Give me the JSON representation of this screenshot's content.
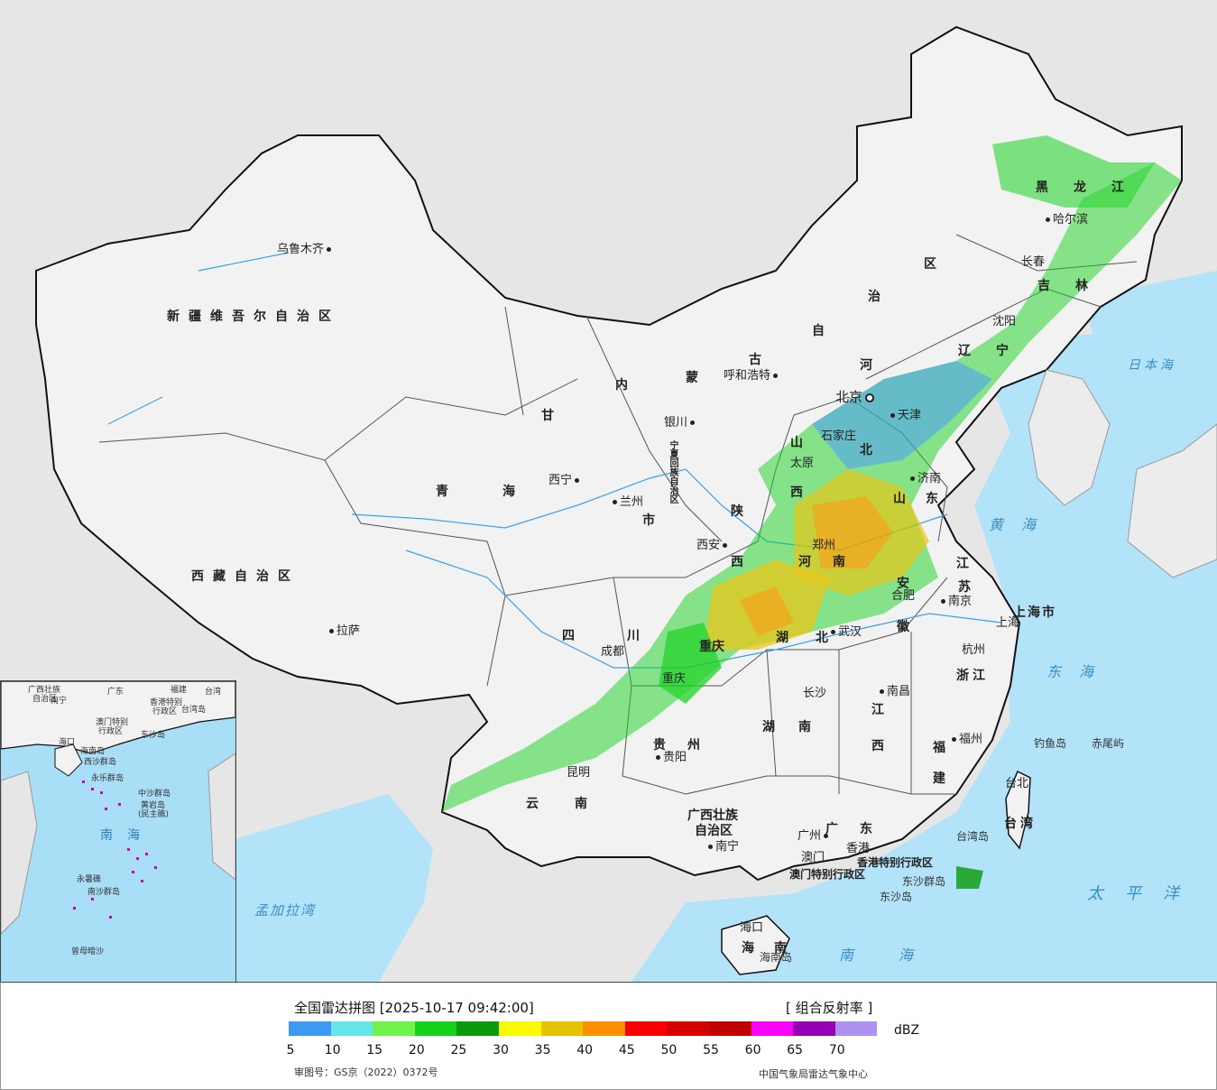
{
  "legend": {
    "title": "全国雷达拼图 [2025-10-17 09:42:00]",
    "product": "[ 组合反射率 ]",
    "unit": "dBZ",
    "colors": [
      "#3d9af2",
      "#62e6e9",
      "#70f44a",
      "#16d11d",
      "#0b9a0b",
      "#fbfb00",
      "#e6c300",
      "#fb9100",
      "#f70000",
      "#d50000",
      "#c10000",
      "#fb00fb",
      "#9600b4",
      "#ad90f0"
    ],
    "ticks": [
      "5",
      "10",
      "15",
      "20",
      "25",
      "30",
      "35",
      "40",
      "45",
      "50",
      "55",
      "60",
      "65",
      "70"
    ],
    "approval": "审图号：GS京（2022）0372号",
    "credit": "中国气象局雷达气象中心"
  },
  "map": {
    "provinces": [
      {
        "text": "新疆维吾尔自治区"
      },
      {
        "text": "西藏自治区"
      },
      {
        "text": "青海"
      },
      {
        "text": "甘"
      },
      {
        "text": "四川"
      },
      {
        "text": "云南"
      },
      {
        "text": "贵州"
      },
      {
        "text": "湖南"
      },
      {
        "text": "湖北"
      },
      {
        "text": "河南"
      },
      {
        "text": "陕"
      },
      {
        "text": "西"
      },
      {
        "text": "山"
      },
      {
        "text": "西"
      },
      {
        "text": "河"
      },
      {
        "text": "北"
      },
      {
        "text": "山东"
      },
      {
        "text": "江"
      },
      {
        "text": "苏"
      },
      {
        "text": "安"
      },
      {
        "text": "徽"
      },
      {
        "text": "浙江"
      },
      {
        "text": "江"
      },
      {
        "text": "西"
      },
      {
        "text": "福"
      },
      {
        "text": "建"
      },
      {
        "text": "广东"
      },
      {
        "text": "广西壮族"
      },
      {
        "text": "自治区"
      },
      {
        "text": "海南"
      },
      {
        "text": "内"
      },
      {
        "text": "蒙"
      },
      {
        "text": "古"
      },
      {
        "text": "自"
      },
      {
        "text": "治"
      },
      {
        "text": "区"
      },
      {
        "text": "辽宁"
      },
      {
        "text": "吉林"
      },
      {
        "text": "黑龙江"
      },
      {
        "text": "台湾"
      },
      {
        "text": "上海市"
      },
      {
        "text": "香港特别行政区"
      },
      {
        "text": "澳门特别行政区"
      },
      {
        "text": "重庆"
      },
      {
        "text": "市"
      },
      {
        "text": "宁夏回族自治区"
      }
    ],
    "cities": [
      {
        "text": "乌鲁木齐"
      },
      {
        "text": "拉萨"
      },
      {
        "text": "西宁"
      },
      {
        "text": "兰州"
      },
      {
        "text": "银川"
      },
      {
        "text": "呼和浩特"
      },
      {
        "text": "北京"
      },
      {
        "text": "天津"
      },
      {
        "text": "石家庄"
      },
      {
        "text": "太原"
      },
      {
        "text": "西安"
      },
      {
        "text": "郑州"
      },
      {
        "text": "济南"
      },
      {
        "text": "合肥"
      },
      {
        "text": "南京"
      },
      {
        "text": "上海"
      },
      {
        "text": "杭州"
      },
      {
        "text": "武汉"
      },
      {
        "text": "成都"
      },
      {
        "text": "重庆"
      },
      {
        "text": "长沙"
      },
      {
        "text": "南昌"
      },
      {
        "text": "福州"
      },
      {
        "text": "台北"
      },
      {
        "text": "贵阳"
      },
      {
        "text": "昆明"
      },
      {
        "text": "南宁"
      },
      {
        "text": "广州"
      },
      {
        "text": "澳门"
      },
      {
        "text": "香港"
      },
      {
        "text": "海口"
      },
      {
        "text": "沈阳"
      },
      {
        "text": "长春"
      },
      {
        "text": "哈尔滨"
      }
    ],
    "seas": [
      {
        "text": "日本海"
      },
      {
        "text": "黄海"
      },
      {
        "text": "东海"
      },
      {
        "text": "太平洋"
      },
      {
        "text": "南海"
      },
      {
        "text": "孟加拉湾"
      }
    ],
    "islands": [
      {
        "text": "钓鱼岛"
      },
      {
        "text": "赤尾屿"
      },
      {
        "text": "台湾岛"
      },
      {
        "text": "东沙群岛"
      },
      {
        "text": "东沙岛"
      },
      {
        "text": "海南岛"
      }
    ]
  },
  "inset": {
    "labels": [
      "广西壮族",
      "自治区",
      "广东",
      "福建",
      "台湾",
      "南宁",
      "香港特别",
      "行政区",
      "澳门特别",
      "行政区",
      "台湾岛",
      "东沙岛",
      "海口",
      "海南岛",
      "西沙群岛",
      "永乐群岛",
      "中沙群岛",
      "黄岩岛",
      "(民主礁)",
      "南海",
      "永暑礁",
      "南沙群岛",
      "曾母暗沙"
    ]
  }
}
